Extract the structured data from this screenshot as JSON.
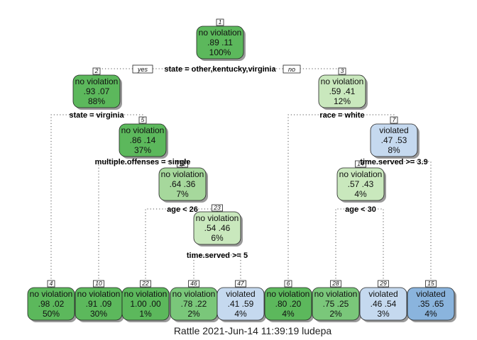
{
  "caption": "Rattle 2021-Jun-14 11:39:19 ludepa",
  "branch_labels": {
    "yes": "yes",
    "no": "no"
  },
  "colors": {
    "g1": "#5cb85c",
    "g2": "#7ac77a",
    "g3": "#a6d89c",
    "g4": "#c9e8bd",
    "b1": "#c5d9ef",
    "b2": "#a9c8e8",
    "b3": "#8ab4dd"
  },
  "nodes": [
    {
      "id": "1",
      "label": "no violation",
      "probs": ".89  .11",
      "pct": "100%",
      "color": "g1"
    },
    {
      "id": "2",
      "label": "no violation",
      "probs": ".93  .07",
      "pct": "88%",
      "color": "g1"
    },
    {
      "id": "3",
      "label": "no violation",
      "probs": ".59  .41",
      "pct": "12%",
      "color": "g4"
    },
    {
      "id": "5",
      "label": "no violation",
      "probs": ".86  .14",
      "pct": "37%",
      "color": "g1"
    },
    {
      "id": "11",
      "label": "no violation",
      "probs": ".64  .36",
      "pct": "7%",
      "color": "g3"
    },
    {
      "id": "23",
      "label": "no violation",
      "probs": ".54  .46",
      "pct": "6%",
      "color": "g4"
    },
    {
      "id": "7",
      "label": "violated",
      "probs": ".47  .53",
      "pct": "8%",
      "color": "b1"
    },
    {
      "id": "14",
      "label": "no violation",
      "probs": ".57  .43",
      "pct": "4%",
      "color": "g4"
    },
    {
      "id": "4",
      "label": "no violation",
      "probs": ".98  .02",
      "pct": "50%",
      "color": "g1"
    },
    {
      "id": "10",
      "label": "no violation",
      "probs": ".91  .09",
      "pct": "30%",
      "color": "g1"
    },
    {
      "id": "22",
      "label": "no violation",
      "probs": "1.00  .00",
      "pct": "1%",
      "color": "g1"
    },
    {
      "id": "46",
      "label": "no violation",
      "probs": ".78  .22",
      "pct": "2%",
      "color": "g2"
    },
    {
      "id": "47",
      "label": "violated",
      "probs": ".41  .59",
      "pct": "4%",
      "color": "b1"
    },
    {
      "id": "6",
      "label": "no violation",
      "probs": ".80  .20",
      "pct": "4%",
      "color": "g1"
    },
    {
      "id": "28",
      "label": "no violation",
      "probs": ".75  .25",
      "pct": "2%",
      "color": "g2"
    },
    {
      "id": "29",
      "label": "violated",
      "probs": ".46  .54",
      "pct": "3%",
      "color": "b1"
    },
    {
      "id": "15",
      "label": "violated",
      "probs": ".35  .65",
      "pct": "4%",
      "color": "b3"
    }
  ],
  "splits": [
    {
      "node": "1",
      "text": "state = other,kentucky,virginia"
    },
    {
      "node": "2",
      "text": "state = virginia"
    },
    {
      "node": "3",
      "text": "race = white"
    },
    {
      "node": "5",
      "text": "multiple.offenses = single"
    },
    {
      "node": "7",
      "text": "time.served >= 3.9"
    },
    {
      "node": "11",
      "text": "age < 26"
    },
    {
      "node": "14",
      "text": "age < 30"
    },
    {
      "node": "23",
      "text": "time.served >= 5"
    }
  ]
}
